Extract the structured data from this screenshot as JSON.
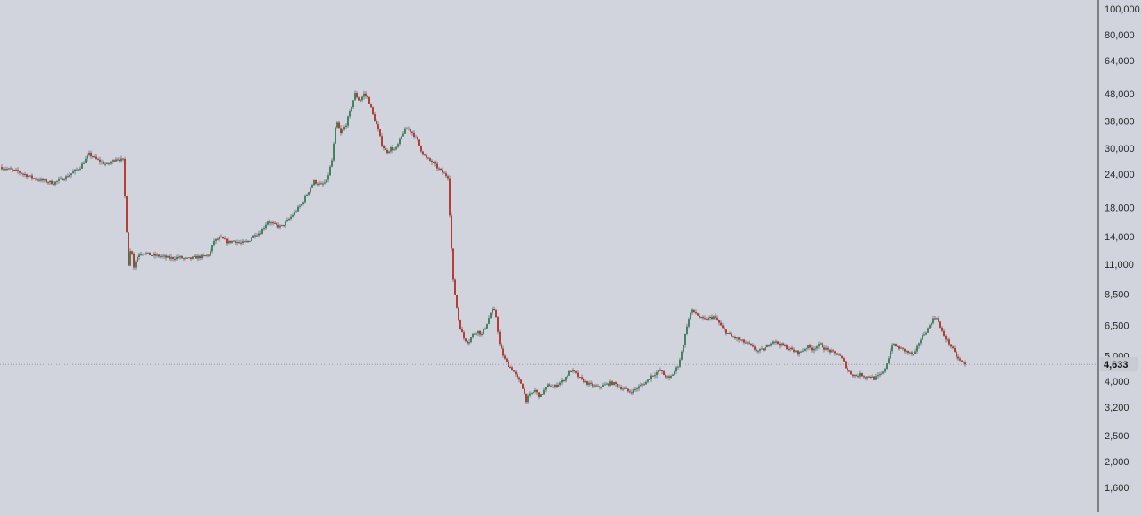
{
  "colors": {
    "background": "#d1d4dc",
    "up": "#2e7d4f",
    "down": "#b32d1f",
    "wick": "#5a5d66",
    "axis_line": "#2b2b2b",
    "axis_text": "#2b2b2b",
    "price_line": "#9aa0a8",
    "last_price_bg": "#c8cbd2",
    "last_price_text": "#111111"
  },
  "price_axis": {
    "scale": "log",
    "ticks": [
      "100,000",
      "80,000",
      "64,000",
      "48,000",
      "38,000",
      "30,000",
      "24,000",
      "18,000",
      "14,000",
      "11,000",
      "8,500",
      "6,500",
      "5,000",
      "4,000",
      "3,200",
      "2,500",
      "2,000",
      "1,600"
    ],
    "last_price_label": "4,633"
  },
  "chart_data": {
    "type": "candlestick",
    "y_scale": "log",
    "ylim": [
      1300,
      105000
    ],
    "last_price": 4633,
    "series": [
      {
        "name": "",
        "close_path": [
          [
            0,
            25500
          ],
          [
            20,
            24500
          ],
          [
            40,
            23000
          ],
          [
            60,
            22200
          ],
          [
            75,
            23500
          ],
          [
            90,
            25500
          ],
          [
            100,
            28500
          ],
          [
            110,
            27000
          ],
          [
            120,
            26000
          ],
          [
            130,
            27500
          ],
          [
            138,
            27000
          ],
          [
            141,
            17000
          ],
          [
            144,
            11000
          ],
          [
            147,
            13000
          ],
          [
            150,
            10800
          ],
          [
            155,
            12000
          ],
          [
            160,
            12200
          ],
          [
            170,
            11900
          ],
          [
            180,
            11800
          ],
          [
            190,
            11600
          ],
          [
            200,
            11700
          ],
          [
            210,
            11500
          ],
          [
            220,
            11700
          ],
          [
            230,
            11800
          ],
          [
            235,
            12000
          ],
          [
            240,
            13500
          ],
          [
            248,
            13800
          ],
          [
            255,
            13300
          ],
          [
            262,
            13500
          ],
          [
            270,
            13200
          ],
          [
            278,
            13400
          ],
          [
            285,
            14200
          ],
          [
            292,
            14500
          ],
          [
            300,
            16000
          ],
          [
            307,
            15500
          ],
          [
            315,
            15200
          ],
          [
            322,
            16000
          ],
          [
            330,
            17200
          ],
          [
            338,
            18500
          ],
          [
            345,
            20500
          ],
          [
            352,
            22500
          ],
          [
            360,
            21800
          ],
          [
            366,
            22500
          ],
          [
            372,
            27000
          ],
          [
            377,
            38000
          ],
          [
            382,
            34000
          ],
          [
            388,
            37000
          ],
          [
            393,
            42000
          ],
          [
            398,
            48000
          ],
          [
            403,
            45000
          ],
          [
            408,
            48000
          ],
          [
            413,
            46000
          ],
          [
            418,
            40000
          ],
          [
            423,
            36000
          ],
          [
            428,
            31000
          ],
          [
            433,
            29000
          ],
          [
            438,
            30000
          ],
          [
            443,
            29500
          ],
          [
            448,
            32000
          ],
          [
            453,
            35000
          ],
          [
            458,
            35500
          ],
          [
            463,
            34000
          ],
          [
            468,
            32000
          ],
          [
            473,
            29000
          ],
          [
            478,
            27500
          ],
          [
            485,
            26500
          ],
          [
            492,
            25000
          ],
          [
            498,
            24000
          ],
          [
            502,
            23500
          ],
          [
            505,
            14500
          ],
          [
            508,
            9500
          ],
          [
            511,
            8000
          ],
          [
            514,
            6800
          ],
          [
            517,
            6200
          ],
          [
            520,
            5800
          ],
          [
            525,
            5600
          ],
          [
            530,
            6000
          ],
          [
            535,
            6200
          ],
          [
            540,
            6000
          ],
          [
            545,
            6500
          ],
          [
            550,
            7200
          ],
          [
            553,
            7500
          ],
          [
            556,
            7000
          ],
          [
            560,
            5500
          ],
          [
            565,
            4900
          ],
          [
            570,
            4600
          ],
          [
            575,
            4400
          ],
          [
            580,
            4100
          ],
          [
            585,
            3900
          ],
          [
            590,
            3400
          ],
          [
            595,
            3600
          ],
          [
            600,
            3700
          ],
          [
            605,
            3500
          ],
          [
            610,
            3700
          ],
          [
            615,
            3900
          ],
          [
            620,
            3800
          ],
          [
            625,
            3900
          ],
          [
            630,
            4000
          ],
          [
            635,
            4200
          ],
          [
            640,
            4400
          ],
          [
            645,
            4300
          ],
          [
            650,
            4100
          ],
          [
            655,
            4000
          ],
          [
            660,
            3900
          ],
          [
            665,
            3850
          ],
          [
            670,
            3800
          ],
          [
            675,
            3850
          ],
          [
            680,
            3900
          ],
          [
            685,
            3950
          ],
          [
            690,
            3900
          ],
          [
            695,
            3800
          ],
          [
            700,
            3750
          ],
          [
            705,
            3650
          ],
          [
            710,
            3700
          ],
          [
            715,
            3800
          ],
          [
            720,
            3900
          ],
          [
            725,
            4000
          ],
          [
            730,
            4200
          ],
          [
            735,
            4300
          ],
          [
            740,
            4400
          ],
          [
            745,
            4200
          ],
          [
            750,
            4100
          ],
          [
            755,
            4300
          ],
          [
            760,
            4600
          ],
          [
            765,
            5300
          ],
          [
            770,
            6500
          ],
          [
            775,
            7400
          ],
          [
            780,
            7200
          ],
          [
            785,
            6900
          ],
          [
            790,
            6800
          ],
          [
            795,
            6900
          ],
          [
            800,
            7000
          ],
          [
            805,
            6700
          ],
          [
            810,
            6300
          ],
          [
            815,
            6100
          ],
          [
            820,
            5900
          ],
          [
            825,
            5800
          ],
          [
            830,
            5700
          ],
          [
            835,
            5600
          ],
          [
            840,
            5500
          ],
          [
            845,
            5300
          ],
          [
            850,
            5200
          ],
          [
            855,
            5250
          ],
          [
            860,
            5400
          ],
          [
            865,
            5700
          ],
          [
            870,
            5600
          ],
          [
            875,
            5500
          ],
          [
            880,
            5400
          ],
          [
            885,
            5300
          ],
          [
            890,
            5200
          ],
          [
            895,
            5100
          ],
          [
            900,
            5250
          ],
          [
            905,
            5400
          ],
          [
            910,
            5300
          ],
          [
            915,
            5400
          ],
          [
            920,
            5500
          ],
          [
            925,
            5300
          ],
          [
            930,
            5200
          ],
          [
            935,
            5100
          ],
          [
            940,
            5050
          ],
          [
            945,
            4800
          ],
          [
            950,
            4400
          ],
          [
            955,
            4250
          ],
          [
            960,
            4200
          ],
          [
            965,
            4250
          ],
          [
            970,
            4150
          ],
          [
            975,
            4200
          ],
          [
            980,
            4100
          ],
          [
            985,
            4200
          ],
          [
            990,
            4300
          ],
          [
            995,
            4800
          ],
          [
            1000,
            5500
          ],
          [
            1005,
            5400
          ],
          [
            1010,
            5300
          ],
          [
            1015,
            5200
          ],
          [
            1020,
            5100
          ],
          [
            1025,
            5000
          ],
          [
            1030,
            5600
          ],
          [
            1035,
            6000
          ],
          [
            1040,
            6300
          ],
          [
            1045,
            6800
          ],
          [
            1050,
            7000
          ],
          [
            1055,
            6200
          ],
          [
            1060,
            5800
          ],
          [
            1065,
            5500
          ],
          [
            1070,
            5100
          ],
          [
            1075,
            4800
          ],
          [
            1082,
            4633
          ]
        ]
      }
    ]
  }
}
